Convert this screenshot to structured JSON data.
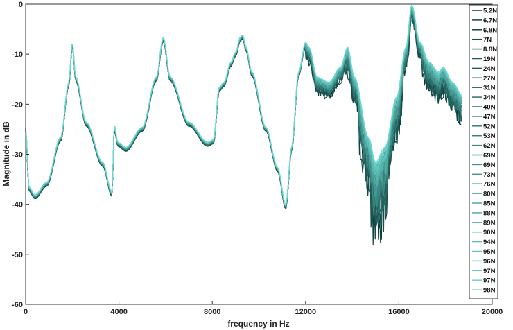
{
  "chart_data": {
    "type": "line",
    "title": "",
    "xlabel": "frequency in Hz",
    "ylabel": "Magnitude in dB",
    "xlim": [
      0,
      20000
    ],
    "ylim": [
      -60,
      0
    ],
    "xticks": [
      0,
      4000,
      8000,
      12000,
      16000,
      20000
    ],
    "yticks": [
      0,
      -10,
      -20,
      -30,
      -40,
      -50,
      -60
    ],
    "grid": false,
    "legend_position": "right",
    "color_dark": "#0b3d3a",
    "color_light": "#6fd8d0",
    "legend": [
      "5.2N",
      "6.7N",
      "6.8N",
      "7N",
      "8.8N",
      "19N",
      "24N",
      "27N",
      "31N",
      "34N",
      "40N",
      "47N",
      "52N",
      "53N",
      "62N",
      "69N",
      "69N",
      "73N",
      "76N",
      "80N",
      "85N",
      "88N",
      "89N",
      "90N",
      "94N",
      "95N",
      "96N",
      "97N",
      "97N",
      "98N"
    ],
    "series_shape": {
      "x": [
        0,
        150,
        400,
        900,
        1500,
        1850,
        2000,
        2150,
        2600,
        3300,
        3700,
        3800,
        3950,
        4300,
        5000,
        5600,
        5900,
        6200,
        7000,
        7800,
        8050,
        8300,
        8500,
        8800,
        9000,
        9200,
        9300,
        9450,
        9700,
        10300,
        10800,
        11150,
        11400,
        11700,
        12000,
        12150,
        12500,
        13000,
        13500,
        13800,
        14100,
        14700,
        15000,
        15400,
        15900,
        16300,
        16550,
        16900,
        17300,
        17700,
        17900,
        18300,
        18700
      ],
      "y": [
        -25,
        -37,
        -38.5,
        -36,
        -27,
        -16,
        -8,
        -15,
        -24,
        -32,
        -38,
        -24.5,
        -28,
        -29,
        -25,
        -15,
        -7,
        -15,
        -24,
        -28,
        -27.5,
        -17,
        -16,
        -12,
        -10,
        -7,
        -6.5,
        -9,
        -14,
        -25,
        -33,
        -40.5,
        -29,
        -14,
        -8,
        -9,
        -15,
        -16,
        -13,
        -9,
        -15,
        -27,
        -32,
        -29,
        -19,
        -9,
        -0.5,
        -8,
        -12,
        -14,
        -13,
        -16,
        -18.5
      ]
    }
  }
}
